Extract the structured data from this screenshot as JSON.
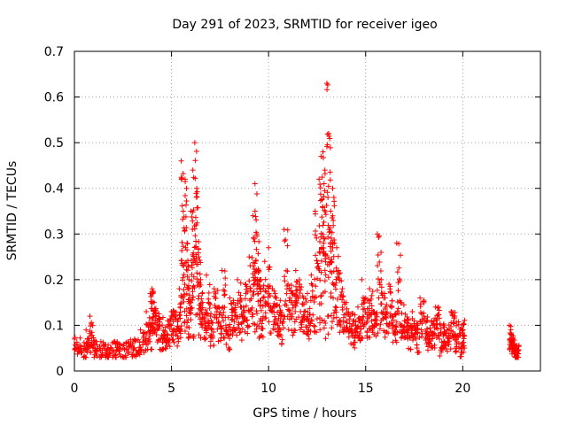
{
  "chart_data": {
    "type": "scatter",
    "title": "Day 291 of 2023, SRMTID for receiver igeo",
    "xlabel": "GPS time / hours",
    "ylabel": "SRMTID / TECUs",
    "xlim": [
      0,
      24
    ],
    "ylim": [
      0,
      0.7
    ],
    "xticks": [
      0,
      5,
      10,
      15,
      20
    ],
    "xtick_labels": [
      "0",
      "5",
      "10",
      "15",
      "20"
    ],
    "yticks": [
      0,
      0.1,
      0.2,
      0.3,
      0.4,
      0.5,
      0.6,
      0.7
    ],
    "ytick_labels": [
      "0",
      "0.1",
      "0.2",
      "0.3",
      "0.4",
      "0.5",
      "0.6",
      "0.7"
    ],
    "grid": true,
    "marker": "+",
    "marker_color": "#ff0000",
    "series": [
      {
        "name": "SRMTID",
        "x": [
          0.0,
          0.3,
          0.6,
          0.8,
          1.0,
          1.3,
          1.6,
          1.9,
          2.2,
          2.5,
          2.8,
          3.1,
          3.4,
          3.7,
          3.9,
          4.0,
          4.1,
          4.2,
          4.4,
          4.6,
          4.8,
          5.0,
          5.2,
          5.4,
          5.5,
          5.6,
          5.7,
          5.8,
          5.9,
          6.0,
          6.1,
          6.2,
          6.3,
          6.4,
          6.5,
          6.6,
          6.8,
          7.0,
          7.2,
          7.4,
          7.6,
          7.8,
          8.0,
          8.2,
          8.4,
          8.6,
          8.8,
          9.0,
          9.2,
          9.3,
          9.4,
          9.5,
          9.6,
          9.8,
          10.0,
          10.2,
          10.4,
          10.6,
          10.8,
          11.0,
          11.2,
          11.4,
          11.6,
          11.8,
          12.0,
          12.2,
          12.4,
          12.6,
          12.7,
          12.8,
          12.9,
          13.0,
          13.1,
          13.2,
          13.3,
          13.4,
          13.6,
          13.8,
          14.0,
          14.2,
          14.4,
          14.6,
          14.8,
          15.0,
          15.2,
          15.4,
          15.6,
          15.8,
          16.0,
          16.2,
          16.4,
          16.6,
          16.8,
          17.0,
          17.2,
          17.4,
          17.6,
          17.8,
          18.0,
          18.2,
          18.4,
          18.6,
          18.8,
          19.0,
          19.2,
          19.4,
          19.6,
          19.8,
          20.0,
          22.4,
          22.5,
          22.6,
          22.7,
          22.8
        ],
        "y": [
          0.07,
          0.05,
          0.09,
          0.12,
          0.06,
          0.05,
          0.04,
          0.05,
          0.06,
          0.05,
          0.06,
          0.07,
          0.09,
          0.13,
          0.17,
          0.18,
          0.15,
          0.12,
          0.1,
          0.08,
          0.11,
          0.13,
          0.12,
          0.18,
          0.46,
          0.35,
          0.42,
          0.28,
          0.2,
          0.35,
          0.44,
          0.5,
          0.4,
          0.25,
          0.2,
          0.15,
          0.21,
          0.12,
          0.18,
          0.14,
          0.22,
          0.1,
          0.16,
          0.15,
          0.2,
          0.14,
          0.19,
          0.25,
          0.34,
          0.41,
          0.3,
          0.22,
          0.2,
          0.24,
          0.27,
          0.18,
          0.16,
          0.13,
          0.31,
          0.19,
          0.17,
          0.22,
          0.19,
          0.16,
          0.17,
          0.21,
          0.35,
          0.42,
          0.47,
          0.48,
          0.44,
          0.63,
          0.52,
          0.35,
          0.4,
          0.28,
          0.22,
          0.18,
          0.15,
          0.12,
          0.11,
          0.14,
          0.2,
          0.16,
          0.18,
          0.13,
          0.3,
          0.2,
          0.16,
          0.19,
          0.12,
          0.28,
          0.15,
          0.11,
          0.1,
          0.13,
          0.09,
          0.16,
          0.12,
          0.08,
          0.11,
          0.14,
          0.07,
          0.1,
          0.09,
          0.13,
          0.08,
          0.06,
          0.09,
          0.1,
          0.08,
          0.06,
          0.05,
          0.04
        ]
      }
    ],
    "noise_seed": 291,
    "cloud_counts": [
      10,
      6
    ]
  }
}
